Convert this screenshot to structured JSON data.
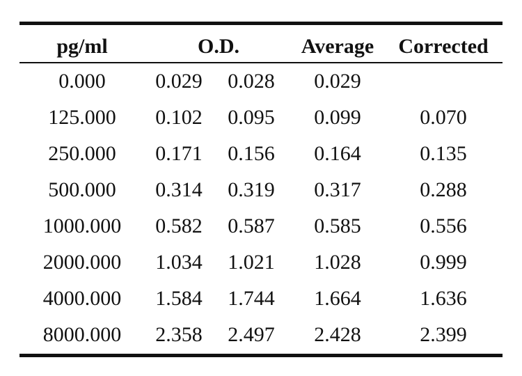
{
  "table": {
    "headers": {
      "conc": "pg/ml",
      "od": "O.D.",
      "average": "Average",
      "corrected": "Corrected"
    },
    "rows": [
      {
        "conc": "0.000",
        "od1": "0.029",
        "od2": "0.028",
        "average": "0.029",
        "corrected": ""
      },
      {
        "conc": "125.000",
        "od1": "0.102",
        "od2": "0.095",
        "average": "0.099",
        "corrected": "0.070"
      },
      {
        "conc": "250.000",
        "od1": "0.171",
        "od2": "0.156",
        "average": "0.164",
        "corrected": "0.135"
      },
      {
        "conc": "500.000",
        "od1": "0.314",
        "od2": "0.319",
        "average": "0.317",
        "corrected": "0.288"
      },
      {
        "conc": "1000.000",
        "od1": "0.582",
        "od2": "0.587",
        "average": "0.585",
        "corrected": "0.556"
      },
      {
        "conc": "2000.000",
        "od1": "1.034",
        "od2": "1.021",
        "average": "1.028",
        "corrected": "0.999"
      },
      {
        "conc": "4000.000",
        "od1": "1.584",
        "od2": "1.744",
        "average": "1.664",
        "corrected": "1.636"
      },
      {
        "conc": "8000.000",
        "od1": "2.358",
        "od2": "2.497",
        "average": "2.428",
        "corrected": "2.399"
      }
    ]
  }
}
